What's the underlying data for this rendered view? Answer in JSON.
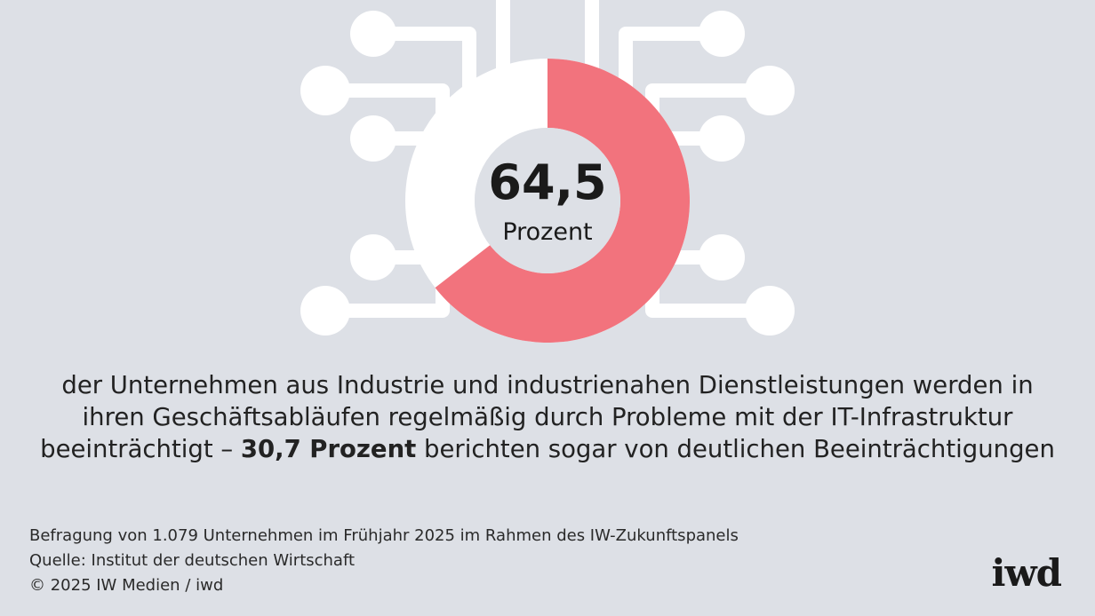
{
  "chart_data": {
    "type": "pie",
    "values": [
      64.5,
      35.5
    ],
    "value_label": "64,5",
    "unit_label": "Prozent"
  },
  "colors": {
    "background": "#dde0e6",
    "donut_filled": "#f2737d",
    "donut_track": "#ffffff",
    "circuit": "#ffffff"
  },
  "icon": "circuit-chip-icon",
  "caption": {
    "line1": "der Unternehmen aus Industrie und industrienahen Dienstleistungen werden in",
    "line2": "ihren Geschäftsabläufen regelmäßig durch Probleme mit der IT-Infrastruktur",
    "line3_before": "beeinträchtigt – ",
    "line3_bold": "30,7 Prozent",
    "line3_after": " berichten sogar von deutlichen Beeinträchtigungen"
  },
  "footer": {
    "survey": "Befragung von 1.079 Unternehmen im Frühjahr 2025 im Rahmen des IW-Zukunftspanels",
    "source": "Quelle: Institut der deutschen Wirtschaft",
    "copyright": "© 2025 IW Medien / iwd"
  },
  "logo": "iwd"
}
